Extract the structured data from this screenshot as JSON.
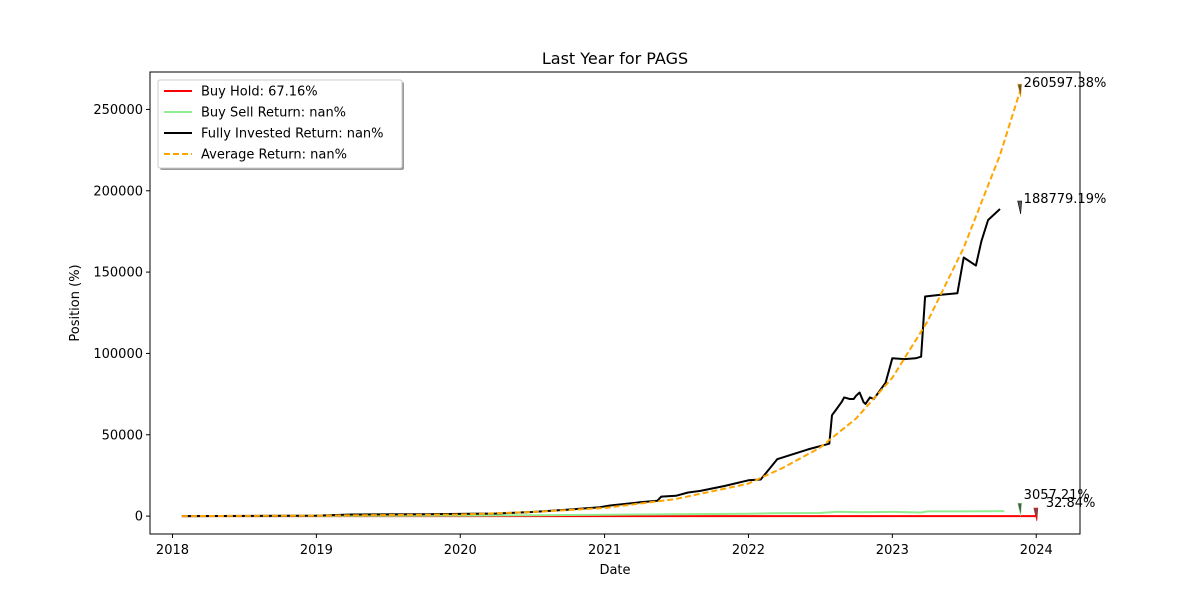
{
  "chart_data": {
    "type": "line",
    "title": "Last Year for PAGS",
    "xlabel": "Date",
    "ylabel": "Position (%)",
    "xlim": [
      "2017-11-05",
      "2024-04-21"
    ],
    "ylim": [
      -11000,
      273000
    ],
    "xticks": [
      "2018",
      "2019",
      "2020",
      "2021",
      "2022",
      "2023",
      "2024"
    ],
    "yticks": [
      0,
      50000,
      100000,
      150000,
      200000,
      250000
    ],
    "ytick_labels": [
      "0",
      "50000",
      "100000",
      "150000",
      "200000",
      "250000"
    ],
    "grid": false,
    "legend_position": "upper-left",
    "series": [
      {
        "name": "Buy Hold: 67.16%",
        "color": "#ff0000",
        "style": "solid",
        "x": [
          "2018-01-25",
          "2019-01-01",
          "2020-01-01",
          "2021-01-01",
          "2022-01-01",
          "2023-01-01",
          "2023-12-31"
        ],
        "y": [
          0,
          0,
          0,
          0,
          0,
          0,
          0
        ]
      },
      {
        "name": "Buy Sell Return: nan%",
        "color": "#90ee90",
        "style": "solid",
        "x": [
          "2018-01-25",
          "2019-01-01",
          "2020-01-01",
          "2020-07-01",
          "2021-01-01",
          "2021-07-01",
          "2022-01-01",
          "2022-03-01",
          "2022-07-01",
          "2022-08-15",
          "2022-10-15",
          "2023-01-01",
          "2023-03-15",
          "2023-04-01",
          "2023-07-01",
          "2023-10-12"
        ],
        "y": [
          0,
          100,
          300,
          500,
          800,
          1200,
          1400,
          1700,
          1900,
          2700,
          2400,
          2600,
          2200,
          2900,
          2900,
          3057
        ]
      },
      {
        "name": "Fully Invested Return: nan%",
        "color": "#000000",
        "style": "solid",
        "x": [
          "2018-01-25",
          "2019-01-01",
          "2019-04-01",
          "2019-10-01",
          "2020-04-01",
          "2020-07-01",
          "2020-10-01",
          "2020-12-20",
          "2021-01-15",
          "2021-04-01",
          "2021-05-15",
          "2021-05-25",
          "2021-07-01",
          "2021-08-01",
          "2021-09-01",
          "2021-11-01",
          "2022-01-01",
          "2022-02-01",
          "2022-03-15",
          "2022-06-01",
          "2022-07-25",
          "2022-08-01",
          "2022-08-10",
          "2022-08-25",
          "2022-09-01",
          "2022-09-15",
          "2022-09-25",
          "2022-10-01",
          "2022-10-10",
          "2022-10-20",
          "2022-10-25",
          "2022-11-05",
          "2022-11-15",
          "2022-12-15",
          "2023-01-01",
          "2023-02-01",
          "2023-03-01",
          "2023-03-15",
          "2023-03-25",
          "2023-05-01",
          "2023-06-15",
          "2023-07-01",
          "2023-08-01",
          "2023-08-15",
          "2023-09-01",
          "2023-10-01"
        ],
        "y": [
          0,
          300,
          1000,
          1200,
          1600,
          2500,
          4000,
          5500,
          6500,
          8500,
          9500,
          12000,
          12500,
          14500,
          15500,
          18500,
          22000,
          22500,
          35000,
          41000,
          44500,
          62000,
          65000,
          70000,
          73000,
          72000,
          72000,
          74000,
          76000,
          70000,
          69000,
          73000,
          72000,
          82000,
          97000,
          96500,
          97000,
          98000,
          135000,
          136000,
          137000,
          159000,
          154000,
          169000,
          182000,
          188779
        ]
      },
      {
        "name": "Average Return: nan%",
        "color": "#ffa500",
        "style": "dashed",
        "x": [
          "2018-01-25",
          "2019-01-01",
          "2020-01-01",
          "2020-07-01",
          "2021-01-01",
          "2021-07-01",
          "2022-01-01",
          "2022-04-01",
          "2022-07-01",
          "2022-10-01",
          "2023-01-01",
          "2023-04-01",
          "2023-07-01",
          "2023-10-01",
          "2023-11-20"
        ],
        "y": [
          0,
          300,
          1000,
          2500,
          5000,
          10500,
          20000,
          30000,
          42000,
          60000,
          85000,
          120000,
          165000,
          222000,
          260597
        ]
      }
    ],
    "annotations": [
      {
        "text": "260597.38%",
        "x": "2023-11-20",
        "y": 260597,
        "color": "#ffa500"
      },
      {
        "text": "188779.19%",
        "x": "2023-11-20",
        "y": 188779,
        "color": "#000000"
      },
      {
        "text": "3057.21%",
        "x": "2023-11-20",
        "y": 3057,
        "color": "#90ee90"
      },
      {
        "text": "32.84%",
        "x": "2023-12-31",
        "y": 0,
        "color": "#ff0000"
      }
    ]
  }
}
